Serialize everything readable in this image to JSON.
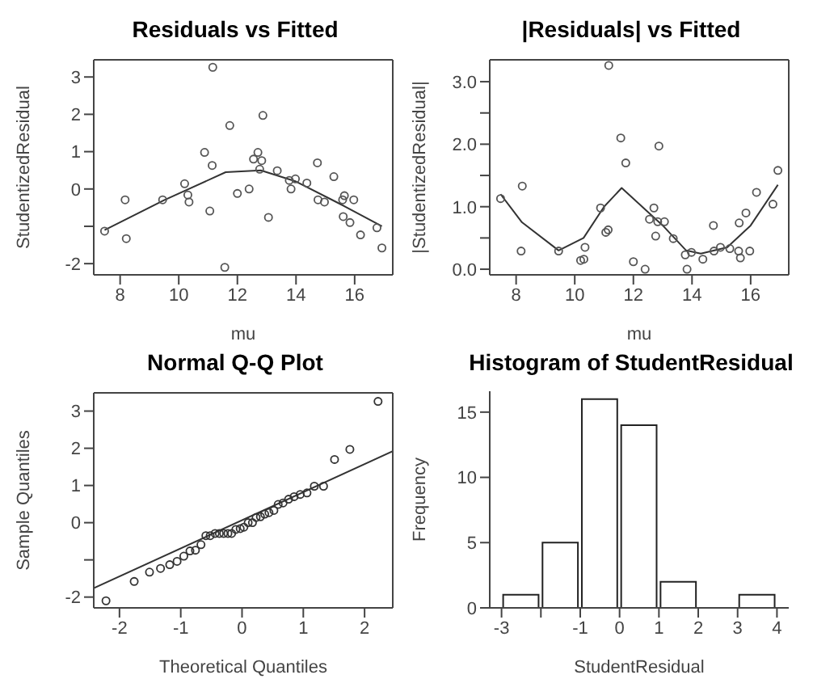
{
  "chart_data": [
    {
      "type": "scatter",
      "title": "Residuals vs Fitted",
      "xlabel": "mu",
      "ylabel": "StudentizedResidual",
      "xlim": [
        7.1,
        17.3
      ],
      "xticks": [
        8,
        10,
        12,
        14,
        16
      ],
      "ylim": [
        -2.3,
        3.46
      ],
      "yticks": [
        -2,
        {
          "value": -1,
          "label": null
        },
        0,
        1,
        2,
        3
      ],
      "series": [
        {
          "type": "scatter",
          "marker": "circle",
          "color": "#555555",
          "x": [
            7.47,
            8.17,
            8.21,
            9.45,
            10.2,
            10.31,
            10.35,
            10.88,
            11.06,
            11.14,
            11.16,
            11.57,
            11.74,
            12.0,
            12.4,
            12.55,
            12.7,
            12.76,
            12.83,
            12.87,
            13.06,
            13.36,
            13.77,
            13.83,
            13.98,
            14.37,
            14.73,
            14.75,
            14.97,
            15.29,
            15.59,
            15.65,
            15.61,
            15.84,
            15.97,
            16.2,
            16.76,
            16.93
          ],
          "values": [
            -1.13,
            -0.29,
            -1.33,
            -0.29,
            0.14,
            -0.16,
            -0.35,
            0.98,
            -0.59,
            0.63,
            3.26,
            -2.1,
            1.7,
            -0.12,
            0,
            0.8,
            0.98,
            0.53,
            0.76,
            1.97,
            -0.76,
            0.49,
            0.23,
            0,
            0.27,
            0.16,
            0.7,
            -0.29,
            -0.35,
            0.33,
            -0.29,
            -0.18,
            -0.74,
            -0.9,
            -0.29,
            -1.23,
            -1.04,
            -1.58
          ]
        },
        {
          "type": "line",
          "color": "#333333",
          "x": [
            7.47,
            9.5,
            11.6,
            12.8,
            14,
            15.5,
            16.93
          ],
          "values": [
            -1.1,
            -0.3,
            0.45,
            0.5,
            0.2,
            -0.4,
            -1.0
          ]
        }
      ]
    },
    {
      "type": "scatter",
      "title": "|Residuals| vs Fitted",
      "xlabel": "mu",
      "ylabel": "|StudentizedResidual|",
      "xlim": [
        7.1,
        17.3
      ],
      "xticks": [
        8,
        10,
        12,
        14,
        16
      ],
      "ylim": [
        -0.09,
        3.35
      ],
      "yticks": [
        "0.0",
        {
          "value": 0.5,
          "label": null
        },
        {
          "value": 1,
          "label": "1.0"
        },
        {
          "value": 1.5,
          "label": null
        },
        {
          "value": 2,
          "label": "2.0"
        },
        {
          "value": 2.5,
          "label": null
        },
        {
          "value": 3,
          "label": "3.0"
        }
      ],
      "series": [
        {
          "type": "scatter",
          "marker": "circle",
          "color": "#555555",
          "x": [
            7.47,
            8.17,
            8.21,
            9.45,
            10.2,
            10.31,
            10.35,
            10.88,
            11.06,
            11.14,
            11.16,
            11.57,
            11.74,
            12.0,
            12.4,
            12.55,
            12.7,
            12.76,
            12.83,
            12.87,
            13.06,
            13.36,
            13.77,
            13.83,
            13.98,
            14.37,
            14.73,
            14.75,
            14.97,
            15.29,
            15.59,
            15.65,
            15.61,
            15.84,
            15.97,
            16.2,
            16.76,
            16.93
          ],
          "values": [
            1.13,
            0.29,
            1.33,
            0.29,
            0.14,
            0.16,
            0.35,
            0.98,
            0.59,
            0.63,
            3.26,
            2.1,
            1.7,
            0.12,
            0,
            0.8,
            0.98,
            0.53,
            0.76,
            1.97,
            0.76,
            0.49,
            0.23,
            0,
            0.27,
            0.16,
            0.7,
            0.29,
            0.35,
            0.33,
            0.29,
            0.18,
            0.74,
            0.9,
            0.29,
            1.23,
            1.04,
            1.58
          ]
        },
        {
          "type": "line",
          "color": "#333333",
          "x": [
            7.47,
            8.2,
            9.45,
            10.3,
            11.0,
            11.6,
            12.3,
            13.0,
            13.8,
            14.3,
            15.2,
            16.0,
            16.93
          ],
          "values": [
            1.2,
            0.75,
            0.3,
            0.5,
            1.0,
            1.3,
            1.0,
            0.7,
            0.3,
            0.25,
            0.35,
            0.7,
            1.35
          ]
        }
      ]
    },
    {
      "type": "scatter",
      "title": "Normal Q-Q Plot",
      "xlabel": "Theoretical Quantiles",
      "ylabel": "Sample Quantiles",
      "xlim": [
        -2.42,
        2.46
      ],
      "xticks": [
        -2,
        -1,
        0,
        1,
        2
      ],
      "ylim": [
        -2.29,
        3.49
      ],
      "yticks": [
        -2,
        {
          "value": -1,
          "label": null
        },
        0,
        1,
        2,
        3
      ],
      "series": [
        {
          "type": "scatter",
          "marker": "circle",
          "color": "#333333",
          "x": [
            -2.22,
            -1.76,
            -1.51,
            -1.33,
            -1.18,
            -1.06,
            -0.95,
            -0.85,
            -0.76,
            -0.67,
            -0.59,
            -0.52,
            -0.44,
            -0.37,
            -0.3,
            -0.23,
            -0.17,
            -0.1,
            -0.03,
            0.03,
            0.1,
            0.17,
            0.23,
            0.3,
            0.37,
            0.44,
            0.52,
            0.59,
            0.67,
            0.76,
            0.85,
            0.95,
            1.06,
            1.18,
            1.33,
            1.51,
            1.76,
            2.22
          ],
          "values": [
            -2.1,
            -1.58,
            -1.33,
            -1.23,
            -1.13,
            -1.04,
            -0.9,
            -0.76,
            -0.74,
            -0.59,
            -0.35,
            -0.35,
            -0.29,
            -0.29,
            -0.29,
            -0.29,
            -0.29,
            -0.18,
            -0.16,
            -0.12,
            0,
            0,
            0.14,
            0.16,
            0.23,
            0.27,
            0.33,
            0.49,
            0.53,
            0.63,
            0.7,
            0.76,
            0.8,
            0.98,
            0.98,
            1.7,
            1.97,
            3.26
          ]
        },
        {
          "type": "line",
          "color": "#333333",
          "x": [
            -2.42,
            2.46
          ],
          "values": [
            -1.76,
            1.92
          ]
        }
      ]
    },
    {
      "type": "histogram",
      "title": "Histogram of StudentResidual",
      "xlabel": "StudentResidual",
      "ylabel": "Frequency",
      "bins": [
        -3,
        -2,
        -1,
        0,
        1,
        2,
        3,
        4
      ],
      "values": [
        1,
        5,
        16,
        14,
        2,
        0,
        1
      ],
      "color": "#ffffff",
      "xlim": [
        -3.3,
        4.3
      ],
      "xticks": [
        -3,
        {
          "value": -2,
          "label": null
        },
        -1,
        0,
        1,
        2,
        3,
        4
      ],
      "ylim": [
        0,
        16.6
      ],
      "yticks": [
        0,
        5,
        10,
        15
      ]
    }
  ]
}
